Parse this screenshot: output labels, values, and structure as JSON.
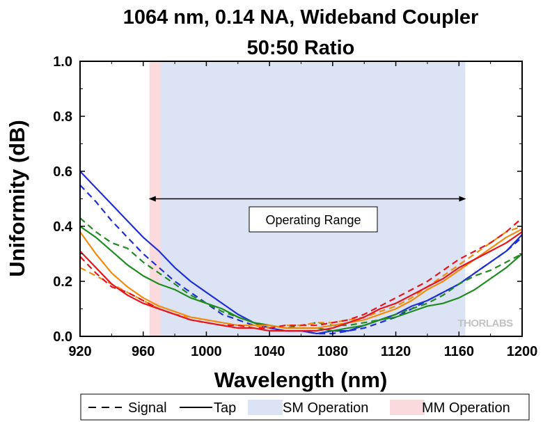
{
  "chart_data": {
    "type": "line",
    "title": "1064 nm, 0.14 NA, Wideband Coupler",
    "subtitle": "50:50 Ratio",
    "xlabel": "Wavelength (nm)",
    "ylabel": "Uniformity (dB)",
    "xlim": [
      920,
      1200
    ],
    "ylim": [
      0,
      1.0
    ],
    "xticks": [
      920,
      960,
      1000,
      1040,
      1080,
      1120,
      1160,
      1200
    ],
    "yticks": [
      0.0,
      0.2,
      0.4,
      0.6,
      0.8,
      1.0
    ],
    "xtick_labels": [
      "920",
      "960",
      "1000",
      "1040",
      "1080",
      "1120",
      "1160",
      "1200"
    ],
    "ytick_labels": [
      "0.0",
      "0.2",
      "0.4",
      "0.6",
      "0.8",
      "1.0"
    ],
    "grid": false,
    "shaded_regions": [
      {
        "name": "SM Operation",
        "x_start": 964,
        "x_end": 1164,
        "color": "#dce3f4"
      },
      {
        "name": "MM Operation",
        "x_start": 964,
        "x_end": 971,
        "color": "#fadadd"
      }
    ],
    "annotation": {
      "text": "Operating Range",
      "x_start": 964,
      "x_end": 1164,
      "y": 0.5
    },
    "watermark": "THORLABS",
    "legend": {
      "placement": "bottom",
      "entries": [
        {
          "label": "Signal",
          "style": "dashed"
        },
        {
          "label": "Tap",
          "style": "solid"
        },
        {
          "label": "SM Operation",
          "style": "patch",
          "color": "#dce3f4"
        },
        {
          "label": "MM Operation",
          "style": "patch",
          "color": "#fadadd"
        }
      ]
    },
    "series": [
      {
        "color": "#1f2fd6",
        "style": "solid",
        "x": [
          920,
          930,
          940,
          950,
          960,
          970,
          980,
          990,
          1000,
          1010,
          1020,
          1030,
          1040,
          1050,
          1060,
          1070,
          1080,
          1090,
          1100,
          1110,
          1120,
          1130,
          1140,
          1150,
          1160,
          1170,
          1180,
          1190,
          1200
        ],
        "y": [
          0.6,
          0.54,
          0.48,
          0.42,
          0.36,
          0.31,
          0.25,
          0.2,
          0.16,
          0.12,
          0.08,
          0.05,
          0.03,
          0.02,
          0.02,
          0.01,
          0.02,
          0.02,
          0.04,
          0.06,
          0.08,
          0.11,
          0.13,
          0.16,
          0.19,
          0.23,
          0.27,
          0.31,
          0.37
        ]
      },
      {
        "color": "#1f2fd6",
        "style": "dashed",
        "x": [
          920,
          930,
          940,
          950,
          960,
          970,
          980,
          990,
          1000,
          1010,
          1020,
          1030,
          1040,
          1050,
          1060,
          1070,
          1080,
          1090,
          1100,
          1110,
          1120,
          1130,
          1140,
          1150,
          1160,
          1170,
          1180,
          1190,
          1200
        ],
        "y": [
          0.55,
          0.49,
          0.42,
          0.36,
          0.3,
          0.25,
          0.2,
          0.16,
          0.12,
          0.08,
          0.06,
          0.04,
          0.03,
          0.02,
          0.02,
          0.01,
          0.01,
          0.02,
          0.03,
          0.05,
          0.07,
          0.1,
          0.13,
          0.16,
          0.19,
          0.23,
          0.27,
          0.31,
          0.36
        ]
      },
      {
        "color": "#1e8c1e",
        "style": "solid",
        "x": [
          920,
          930,
          940,
          950,
          960,
          970,
          980,
          990,
          1000,
          1010,
          1020,
          1030,
          1040,
          1050,
          1060,
          1070,
          1080,
          1090,
          1100,
          1110,
          1120,
          1130,
          1140,
          1150,
          1160,
          1170,
          1180,
          1190,
          1200
        ],
        "y": [
          0.4,
          0.36,
          0.31,
          0.26,
          0.22,
          0.19,
          0.17,
          0.14,
          0.12,
          0.1,
          0.07,
          0.05,
          0.04,
          0.03,
          0.03,
          0.03,
          0.02,
          0.03,
          0.04,
          0.06,
          0.07,
          0.09,
          0.11,
          0.12,
          0.14,
          0.17,
          0.21,
          0.25,
          0.3
        ]
      },
      {
        "color": "#1e8c1e",
        "style": "dashed",
        "x": [
          920,
          930,
          940,
          950,
          960,
          970,
          980,
          990,
          1000,
          1010,
          1020,
          1030,
          1040,
          1050,
          1060,
          1070,
          1080,
          1090,
          1100,
          1110,
          1120,
          1130,
          1140,
          1150,
          1160,
          1170,
          1180,
          1190,
          1200
        ],
        "y": [
          0.43,
          0.38,
          0.34,
          0.32,
          0.27,
          0.23,
          0.19,
          0.15,
          0.12,
          0.09,
          0.07,
          0.05,
          0.04,
          0.03,
          0.04,
          0.05,
          0.04,
          0.04,
          0.05,
          0.06,
          0.08,
          0.1,
          0.12,
          0.15,
          0.19,
          0.22,
          0.24,
          0.27,
          0.3
        ]
      },
      {
        "color": "#f28b0c",
        "style": "solid",
        "x": [
          920,
          930,
          940,
          950,
          960,
          970,
          980,
          990,
          1000,
          1010,
          1020,
          1030,
          1040,
          1050,
          1060,
          1070,
          1080,
          1090,
          1100,
          1110,
          1120,
          1130,
          1140,
          1150,
          1160,
          1170,
          1180,
          1190,
          1200
        ],
        "y": [
          0.38,
          0.3,
          0.23,
          0.18,
          0.14,
          0.11,
          0.09,
          0.07,
          0.06,
          0.05,
          0.04,
          0.04,
          0.04,
          0.03,
          0.03,
          0.03,
          0.04,
          0.05,
          0.06,
          0.08,
          0.1,
          0.13,
          0.17,
          0.2,
          0.24,
          0.28,
          0.32,
          0.36,
          0.39
        ]
      },
      {
        "color": "#f28b0c",
        "style": "dashed",
        "x": [
          920,
          930,
          940,
          950,
          960,
          970,
          980,
          990,
          1000,
          1010,
          1020,
          1030,
          1040,
          1050,
          1060,
          1070,
          1080,
          1090,
          1100,
          1110,
          1120,
          1130,
          1140,
          1150,
          1160,
          1170,
          1180,
          1190,
          1200
        ],
        "y": [
          0.25,
          0.22,
          0.19,
          0.16,
          0.13,
          0.1,
          0.08,
          0.07,
          0.06,
          0.05,
          0.04,
          0.04,
          0.03,
          0.04,
          0.04,
          0.05,
          0.05,
          0.06,
          0.07,
          0.09,
          0.11,
          0.14,
          0.18,
          0.22,
          0.26,
          0.3,
          0.34,
          0.38,
          0.4
        ]
      },
      {
        "color": "#e8141c",
        "style": "solid",
        "x": [
          920,
          930,
          940,
          950,
          960,
          970,
          980,
          990,
          1000,
          1010,
          1020,
          1030,
          1040,
          1050,
          1060,
          1070,
          1080,
          1090,
          1100,
          1110,
          1120,
          1130,
          1140,
          1150,
          1160,
          1170,
          1180,
          1190,
          1200
        ],
        "y": [
          0.31,
          0.25,
          0.19,
          0.15,
          0.12,
          0.1,
          0.08,
          0.06,
          0.05,
          0.04,
          0.03,
          0.03,
          0.02,
          0.02,
          0.02,
          0.02,
          0.03,
          0.05,
          0.07,
          0.1,
          0.12,
          0.15,
          0.18,
          0.21,
          0.25,
          0.28,
          0.31,
          0.34,
          0.38
        ]
      },
      {
        "color": "#e8141c",
        "style": "dashed",
        "x": [
          920,
          930,
          940,
          950,
          960,
          970,
          980,
          990,
          1000,
          1010,
          1020,
          1030,
          1040,
          1050,
          1060,
          1070,
          1080,
          1090,
          1100,
          1110,
          1120,
          1130,
          1140,
          1150,
          1160,
          1170,
          1180,
          1190,
          1200
        ],
        "y": [
          0.29,
          0.23,
          0.18,
          0.16,
          0.13,
          0.1,
          0.08,
          0.06,
          0.05,
          0.04,
          0.04,
          0.03,
          0.03,
          0.04,
          0.04,
          0.04,
          0.05,
          0.06,
          0.08,
          0.11,
          0.14,
          0.17,
          0.2,
          0.24,
          0.28,
          0.31,
          0.34,
          0.38,
          0.43
        ]
      }
    ]
  }
}
